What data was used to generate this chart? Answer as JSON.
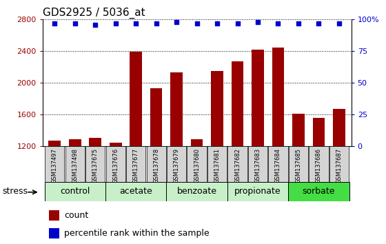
{
  "title": "GDS2925 / 5036_at",
  "samples": [
    "GSM137497",
    "GSM137498",
    "GSM137675",
    "GSM137676",
    "GSM137677",
    "GSM137678",
    "GSM137679",
    "GSM137680",
    "GSM137681",
    "GSM137682",
    "GSM137683",
    "GSM137684",
    "GSM137685",
    "GSM137686",
    "GSM137687"
  ],
  "counts": [
    1270,
    1290,
    1310,
    1250,
    2390,
    1930,
    2130,
    1290,
    2150,
    2270,
    2420,
    2450,
    1610,
    1560,
    1670
  ],
  "percentiles": [
    97,
    97,
    96,
    97,
    97,
    97,
    98,
    97,
    97,
    97,
    98,
    97,
    97,
    97,
    97
  ],
  "ylim_left": [
    1200,
    2800
  ],
  "ylim_right": [
    0,
    100
  ],
  "yticks_left": [
    1200,
    1600,
    2000,
    2400,
    2800
  ],
  "yticks_right": [
    0,
    25,
    50,
    75,
    100
  ],
  "ytick_labels_right": [
    "0",
    "25",
    "50",
    "75",
    "100%"
  ],
  "groups": [
    {
      "label": "control",
      "start": 0,
      "end": 3
    },
    {
      "label": "acetate",
      "start": 3,
      "end": 6
    },
    {
      "label": "benzoate",
      "start": 6,
      "end": 9
    },
    {
      "label": "propionate",
      "start": 9,
      "end": 12
    },
    {
      "label": "sorbate",
      "start": 12,
      "end": 15
    }
  ],
  "group_colors": [
    "#c8f0c8",
    "#c8f0c8",
    "#c8f0c8",
    "#c8f0c8",
    "#44dd44"
  ],
  "bar_color": "#990000",
  "dot_color": "#0000cc",
  "bar_width": 0.6,
  "title_fontsize": 11,
  "tick_fontsize": 8,
  "label_fontsize": 9,
  "stress_label": "stress",
  "legend_count_label": "count",
  "legend_pct_label": "percentile rank within the sample",
  "sample_bg_color": "#d4d4d4"
}
